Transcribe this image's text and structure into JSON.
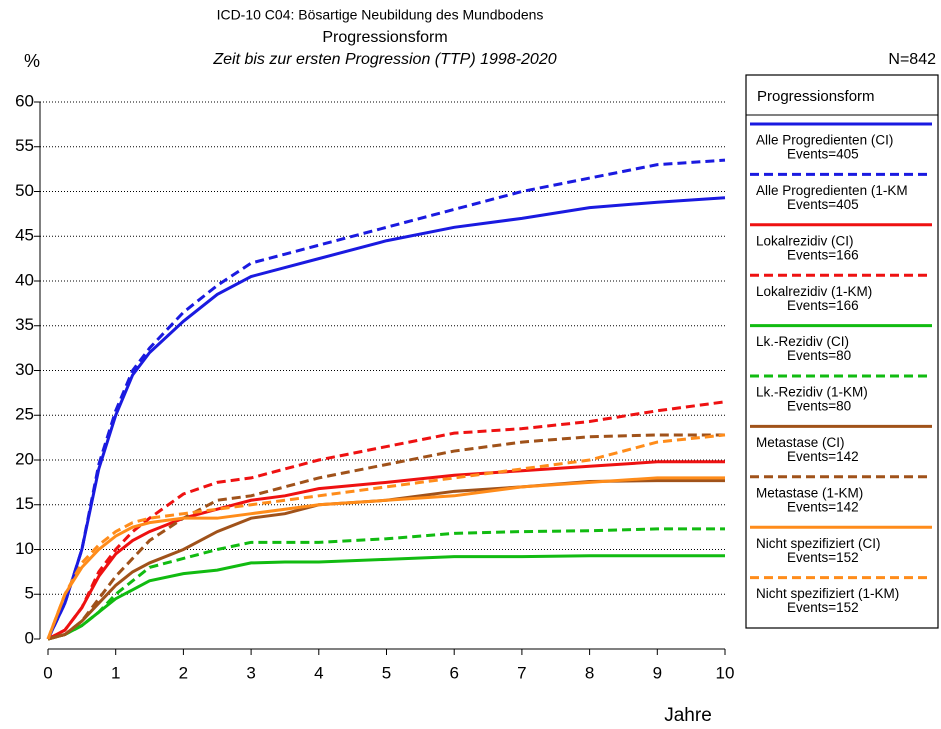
{
  "chart_data": {
    "type": "line",
    "title": "ICD-10 C04: Bösartige Neubildung des Mundbodens",
    "subtitle": "Progressionsform",
    "subtitle2": "Zeit bis zur ersten Progression (TTP) 1998-2020",
    "y_label": "%",
    "x_label": "Jahre",
    "n_label": "N=842",
    "legend_title": "Progressionsform",
    "xlim": [
      0,
      10
    ],
    "xticks": [
      0,
      1,
      2,
      3,
      4,
      5,
      6,
      7,
      8,
      9,
      10
    ],
    "ylim": [
      0,
      60
    ],
    "yticks": [
      0,
      5,
      10,
      15,
      20,
      25,
      30,
      35,
      40,
      45,
      50,
      55,
      60
    ],
    "grid": true,
    "x": [
      0,
      0.25,
      0.5,
      0.75,
      1,
      1.25,
      1.5,
      2,
      2.5,
      3,
      3.5,
      4,
      5,
      6,
      7,
      8,
      9,
      10
    ],
    "series": [
      {
        "name": "Alle Progredienten (CI)",
        "note": "Events=405",
        "color": "#1a1ae0",
        "dashed": false,
        "values": [
          0,
          4,
          10,
          19,
          25,
          29.5,
          32,
          35.5,
          38.5,
          40.5,
          41.5,
          42.5,
          44.5,
          46,
          47,
          48.2,
          48.8,
          49.3
        ]
      },
      {
        "name": "Alle Progredienten (1-KM",
        "note": "Events=405",
        "color": "#1a1ae0",
        "dashed": true,
        "values": [
          0,
          4,
          10,
          19.5,
          25.5,
          30,
          32.5,
          36.5,
          39.5,
          42,
          43,
          44,
          46,
          48,
          50,
          51.5,
          53,
          53.5
        ]
      },
      {
        "name": "Lokalrezidiv (CI)",
        "note": "Events=166",
        "color": "#ee1111",
        "dashed": false,
        "values": [
          0,
          1,
          3.5,
          7,
          9.5,
          11,
          12,
          13.5,
          14.5,
          15.5,
          16,
          16.8,
          17.5,
          18.3,
          18.8,
          19.3,
          19.8,
          19.8
        ]
      },
      {
        "name": "Lokalrezidiv (1-KM)",
        "note": "Events=166",
        "color": "#ee1111",
        "dashed": true,
        "values": [
          0,
          1,
          3.5,
          7.5,
          10,
          12,
          13.5,
          16.2,
          17.5,
          18,
          19,
          20,
          21.5,
          23,
          23.5,
          24.3,
          25.5,
          26.5
        ]
      },
      {
        "name": "Lk.-Rezidiv (CI)",
        "note": "Events=80",
        "color": "#11bb11",
        "dashed": false,
        "values": [
          0,
          0.5,
          1.5,
          3,
          4.5,
          5.5,
          6.5,
          7.3,
          7.7,
          8.5,
          8.6,
          8.6,
          8.9,
          9.2,
          9.2,
          9.3,
          9.3,
          9.3
        ]
      },
      {
        "name": "Lk.-Rezidiv (1-KM)",
        "note": "Events=80",
        "color": "#11bb11",
        "dashed": true,
        "values": [
          0,
          0.5,
          1.5,
          3,
          5,
          6.5,
          8,
          9,
          10,
          10.8,
          10.8,
          10.8,
          11.2,
          11.8,
          12,
          12.1,
          12.3,
          12.3
        ]
      },
      {
        "name": "Metastase (CI)",
        "note": "Events=142",
        "color": "#a0521a",
        "dashed": false,
        "values": [
          0,
          0.5,
          2,
          4,
          6,
          7.5,
          8.5,
          10,
          12,
          13.5,
          14,
          15,
          15.5,
          16.5,
          17,
          17.6,
          17.7,
          17.7
        ]
      },
      {
        "name": "Metastase (1-KM)",
        "note": "Events=142",
        "color": "#a0521a",
        "dashed": true,
        "values": [
          0,
          0.5,
          2,
          4.5,
          7,
          9,
          11,
          13.5,
          15.5,
          16,
          17,
          18,
          19.5,
          21,
          22,
          22.6,
          22.8,
          22.8
        ]
      },
      {
        "name": "Nicht spezifiziert (CI)",
        "note": "Events=152",
        "color": "#ff8c1a",
        "dashed": false,
        "values": [
          0,
          5,
          8,
          10,
          11.5,
          12.5,
          13,
          13.5,
          13.5,
          14,
          14.5,
          15,
          15.5,
          16,
          17,
          17.5,
          18,
          18
        ]
      },
      {
        "name": "Nicht spezifiziert (1-KM)",
        "note": "Events=152",
        "color": "#ff8c1a",
        "dashed": true,
        "values": [
          0,
          5,
          8.5,
          10.5,
          12,
          13,
          13.5,
          14,
          14.5,
          15,
          15.5,
          16,
          17,
          18,
          19,
          20,
          22,
          22.8
        ]
      }
    ]
  }
}
